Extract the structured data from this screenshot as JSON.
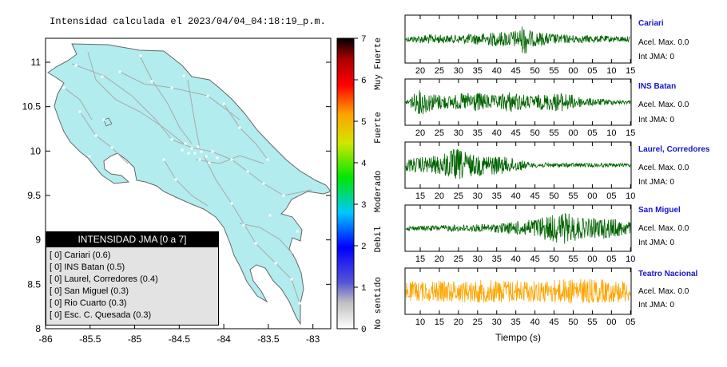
{
  "map": {
    "title": "Intensidad calculada el 2023/04/04_04:18:19_p.m.",
    "x_ticks": [
      "-86",
      "-85.5",
      "-85",
      "-84.5",
      "-84",
      "-83.5",
      "-83"
    ],
    "y_ticks": [
      "11",
      "10.5",
      "10",
      "9.5",
      "9",
      "8.5",
      "8"
    ],
    "land_color": "#b2ecee",
    "legend_title": "INTENSIDAD JMA [0 a 7]",
    "legend": [
      "[ 0]  Cariari (0.6)",
      "[ 0]  INS Batan (0.5)",
      "[ 0]  Laurel, Corredores (0.4)",
      "[ 0]  San Miguel (0.3)",
      "[ 0]  Rio Cuarto (0.3)",
      "[ 0]  Esc. C. Quesada (0.3)"
    ]
  },
  "colorbar": {
    "ticks": [
      "0",
      "1",
      "2",
      "3",
      "4",
      "5",
      "6",
      "7"
    ],
    "labels": [
      "No sentido",
      "Debil",
      "Moderado",
      "Fuerte",
      "Muy Fuerte"
    ]
  },
  "traces": {
    "xlabel": "Tiempo (s)",
    "stations": [
      {
        "name": "Cariari",
        "acc": "Acel. Max. 0.0",
        "int": "Int JMA: 0",
        "color": "#006400",
        "ticks": [
          "20",
          "25",
          "30",
          "35",
          "40",
          "45",
          "50",
          "55",
          "00",
          "05",
          "10",
          "15"
        ]
      },
      {
        "name": "INS Batan",
        "acc": "Acel. Max. 0.0",
        "int": "Int JMA: 0",
        "color": "#006400",
        "ticks": [
          "20",
          "25",
          "30",
          "35",
          "40",
          "45",
          "50",
          "55",
          "00",
          "05",
          "10",
          "15"
        ]
      },
      {
        "name": "Laurel, Corredores",
        "acc": "Acel. Max. 0.0",
        "int": "Int JMA: 0",
        "color": "#006400",
        "ticks": [
          "15",
          "20",
          "25",
          "30",
          "35",
          "40",
          "45",
          "50",
          "55",
          "00",
          "05",
          "10"
        ]
      },
      {
        "name": "San Miguel",
        "acc": "Acel. Max. 0.0",
        "int": "Int JMA: 0",
        "color": "#006400",
        "ticks": [
          "15",
          "20",
          "25",
          "30",
          "35",
          "40",
          "45",
          "50",
          "55",
          "00",
          "05",
          "10"
        ]
      },
      {
        "name": "Teatro Nacional",
        "acc": "Acel. Max. 0.0",
        "int": "Int JMA: 0",
        "color": "#ffa500",
        "ticks": [
          "10",
          "15",
          "20",
          "25",
          "30",
          "35",
          "40",
          "45",
          "50",
          "55",
          "00",
          "05"
        ]
      }
    ]
  }
}
